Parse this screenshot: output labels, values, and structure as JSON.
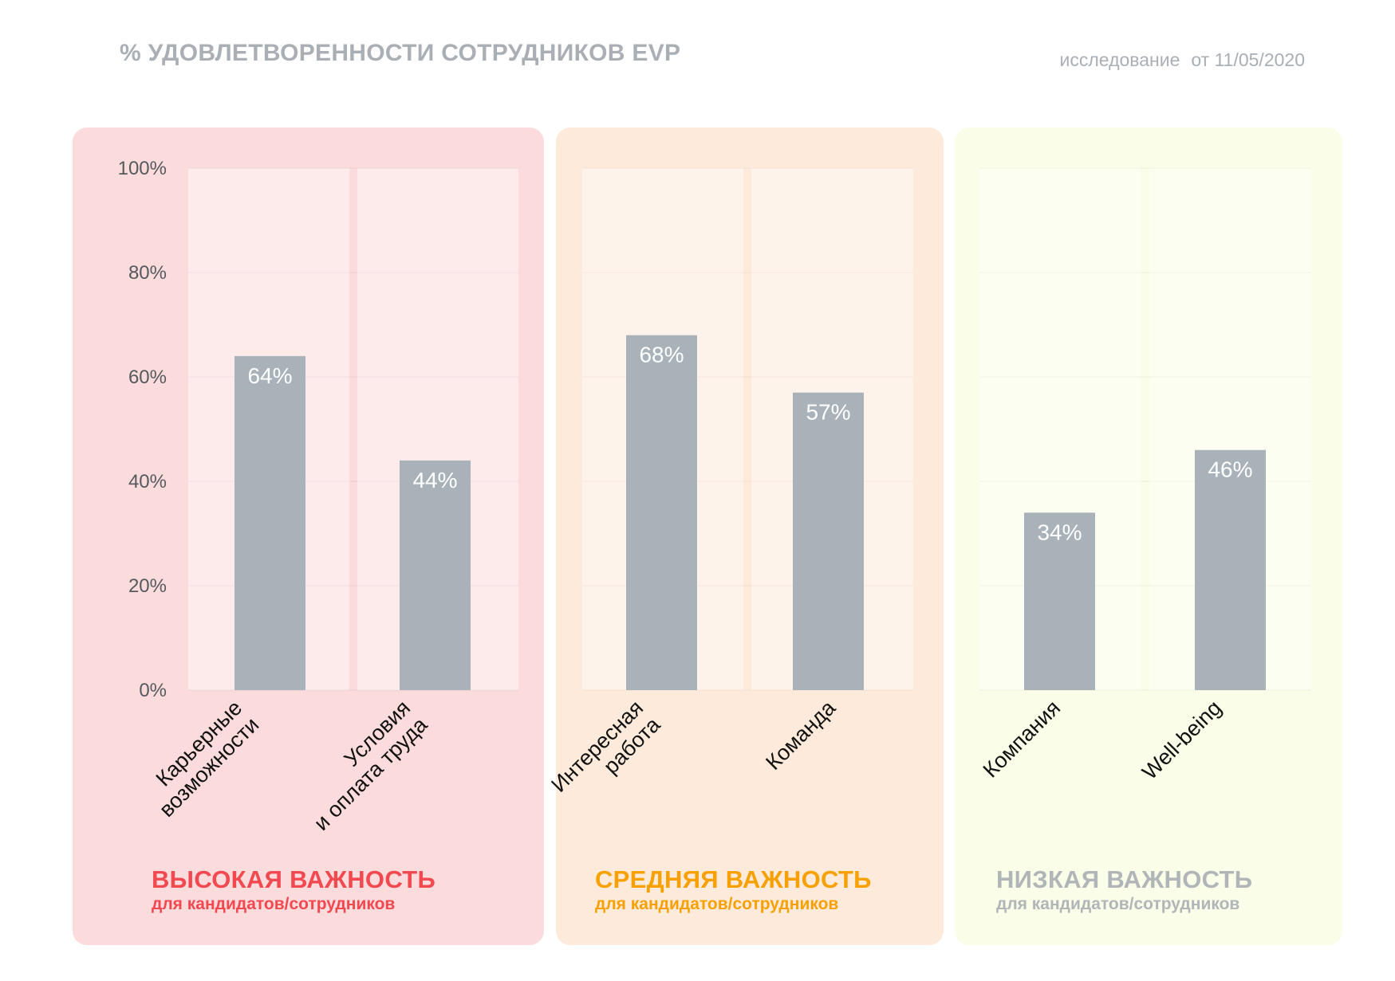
{
  "header": {
    "title": "% УДОВЛЕТВОРЕННОСТИ СОТРУДНИКОВ EVP",
    "study_label": "исследование",
    "date_label": "от 11/05/2020"
  },
  "colors": {
    "bar": "#aab2b9",
    "high": "#f2484f",
    "medium": "#f7a100",
    "low": "#b0b5b8",
    "panel_high": "#fbdbdc",
    "panel_medium": "#fdeadb",
    "panel_low": "#fafde8"
  },
  "chart_data": {
    "type": "bar",
    "ylim": [
      0,
      100
    ],
    "yticks": [
      "0%",
      "20%",
      "40%",
      "60%",
      "80%",
      "100%"
    ],
    "grid": true,
    "groups": [
      {
        "title": "ВЫСОКАЯ ВАЖНОСТЬ",
        "subtitle": "для кандидатов/сотрудников",
        "color_key": "high",
        "categories": [
          [
            "Карьерные",
            "возможности"
          ],
          [
            "Условия",
            "и оплата труда"
          ]
        ],
        "values": [
          64,
          44
        ],
        "labels": [
          "64%",
          "44%"
        ]
      },
      {
        "title": "СРЕДНЯЯ ВАЖНОСТЬ",
        "subtitle": "для кандидатов/сотрудников",
        "color_key": "medium",
        "categories": [
          [
            "Интересная",
            "работа"
          ],
          [
            "Команда"
          ]
        ],
        "values": [
          68,
          57
        ],
        "labels": [
          "68%",
          "57%"
        ]
      },
      {
        "title": "НИЗКАЯ ВАЖНОСТЬ",
        "subtitle": "для кандидатов/сотрудников",
        "color_key": "low",
        "categories": [
          [
            "Компания"
          ],
          [
            "Well-being"
          ]
        ],
        "values": [
          34,
          46
        ],
        "labels": [
          "34%",
          "46%"
        ]
      }
    ]
  }
}
